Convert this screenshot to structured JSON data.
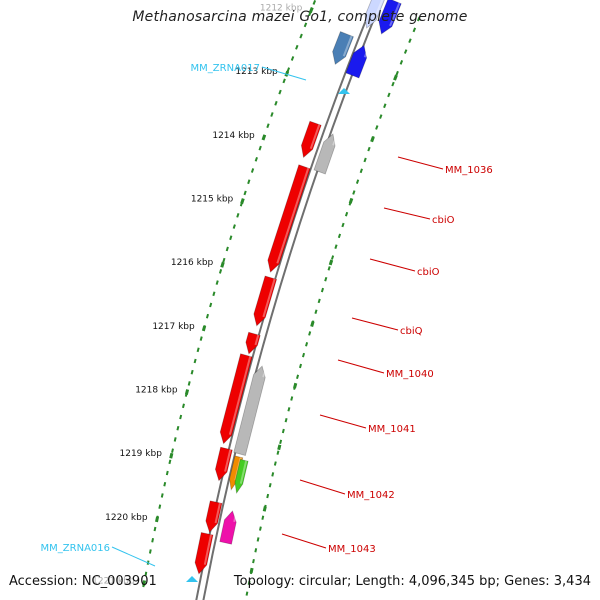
{
  "title": "Methanosarcina mazei Go1, complete genome",
  "footer": {
    "accession": "Accession: NC_003901",
    "summary": "Topology: circular; Length: 4,096,345 bp; Genes: 3,434"
  },
  "ticks": [
    {
      "label": "1212 kbp"
    },
    {
      "label": "1213 kbp"
    },
    {
      "label": "1214 kbp"
    },
    {
      "label": "1215 kbp"
    },
    {
      "label": "1216 kbp"
    },
    {
      "label": "1217 kbp"
    },
    {
      "label": "1218 kbp"
    },
    {
      "label": "1219 kbp"
    },
    {
      "label": "1220 kbp"
    },
    {
      "label": "1221 kbp"
    }
  ],
  "gene_labels": [
    {
      "text": "MM_ZRNA017",
      "side": "left",
      "color": "#33c3ee"
    },
    {
      "text": "MM_1036",
      "side": "right",
      "color": "#cc0000"
    },
    {
      "text": "cbiO",
      "side": "right",
      "color": "#cc0000"
    },
    {
      "text": "cbiO",
      "side": "right",
      "color": "#cc0000"
    },
    {
      "text": "cbiQ",
      "side": "right",
      "color": "#cc0000"
    },
    {
      "text": "MM_1040",
      "side": "right",
      "color": "#cc0000"
    },
    {
      "text": "MM_1041",
      "side": "right",
      "color": "#cc0000"
    },
    {
      "text": "MM_1042",
      "side": "right",
      "color": "#cc0000"
    },
    {
      "text": "MM_1043",
      "side": "right",
      "color": "#cc0000"
    },
    {
      "text": "MM_ZRNA016",
      "side": "left",
      "color": "#33c3ee"
    }
  ],
  "colors": {
    "backbone": "#8a8a8a",
    "tick_marks": "#2a8a2a",
    "gene_red": "#ee0000",
    "gene_grey": "#b8b8b8",
    "gene_blue": "#1a1aee",
    "gene_steel": "#4a7fb5",
    "gene_orange": "#f08c00",
    "gene_green": "#44cc22",
    "gene_magenta": "#ee11aa",
    "rna_marker": "#33c3ee"
  }
}
